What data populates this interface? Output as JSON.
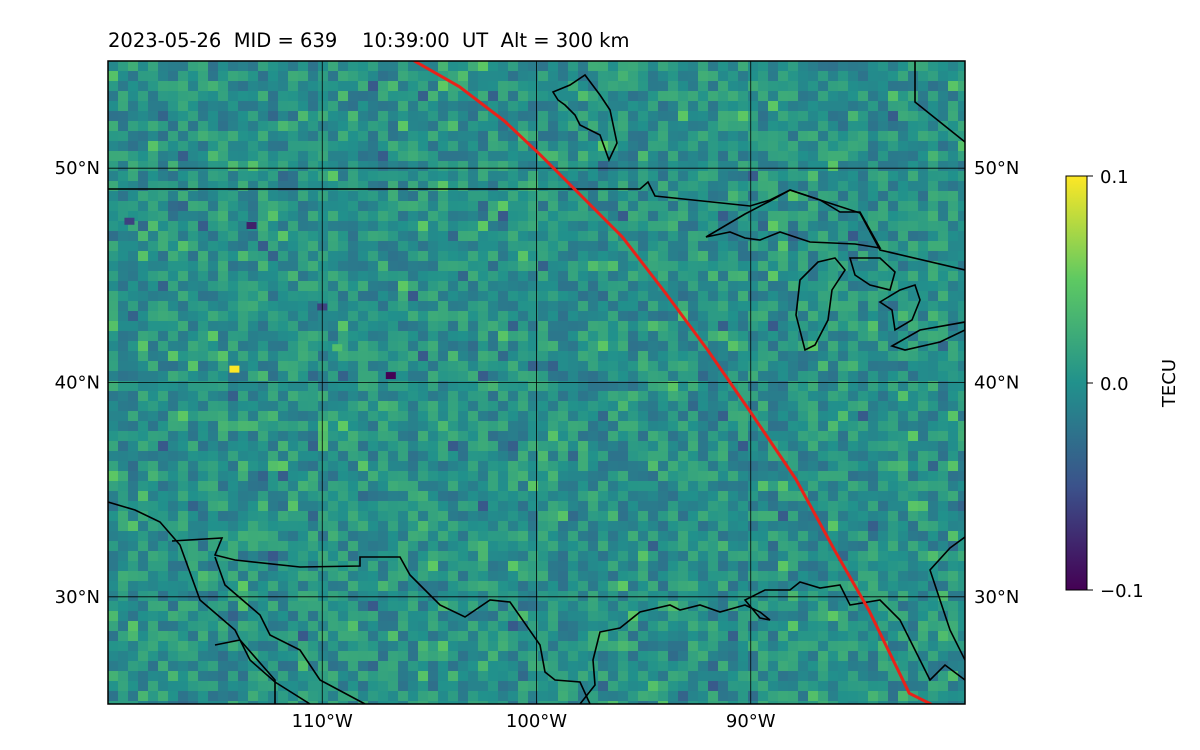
{
  "title": "2023-05-26  MID = 639    10:39:00  UT  Alt = 300 km",
  "chart_data": {
    "type": "heatmap",
    "title": "2023-05-26  MID = 639    10:39:00  UT  Alt = 300 km",
    "map": {
      "lon_range": [
        -120,
        -80
      ],
      "lat_range": [
        25,
        55
      ],
      "lon_ticks": [
        -110,
        -100,
        -90
      ],
      "lat_ticks": [
        30,
        40,
        50
      ],
      "x_tick_labels": [
        "110°W",
        "100°W",
        "90°W"
      ],
      "y_tick_labels": [
        "30°N",
        "40°N",
        "50°N"
      ],
      "grid": true,
      "colormap": "viridis",
      "background_value_tecu": 0.0,
      "coastline_color": "#000000"
    },
    "colorbar": {
      "label": "TECU",
      "vmin": -0.1,
      "vmax": 0.1,
      "ticks": [
        0.1,
        0.0,
        -0.1
      ],
      "tick_labels": [
        "0.1",
        "0.0",
        "−0.1"
      ]
    },
    "track": {
      "color": "#e8221a",
      "points": [
        [
          -105.7,
          55.0
        ],
        [
          -103.6,
          53.8
        ],
        [
          -101.5,
          52.2
        ],
        [
          -99.8,
          50.6
        ],
        [
          -98.0,
          48.8
        ],
        [
          -96.0,
          46.8
        ],
        [
          -94.0,
          44.2
        ],
        [
          -92.0,
          41.5
        ],
        [
          -90.0,
          38.6
        ],
        [
          -87.9,
          35.5
        ],
        [
          -86.1,
          32.2
        ],
        [
          -84.5,
          29.4
        ],
        [
          -82.6,
          25.5
        ],
        [
          -81.6,
          25.0
        ]
      ]
    },
    "anomalies": [
      {
        "lon": -114.1,
        "lat": 40.6,
        "value": 0.1
      },
      {
        "lon": -109.3,
        "lat": 41.6,
        "value": 0.04
      },
      {
        "lon": -106.8,
        "lat": 40.3,
        "value": -0.1
      },
      {
        "lon": -113.3,
        "lat": 47.3,
        "value": -0.08
      },
      {
        "lon": -119.0,
        "lat": 47.5,
        "value": -0.06
      },
      {
        "lon": -110.0,
        "lat": 43.5,
        "value": -0.06
      }
    ]
  }
}
